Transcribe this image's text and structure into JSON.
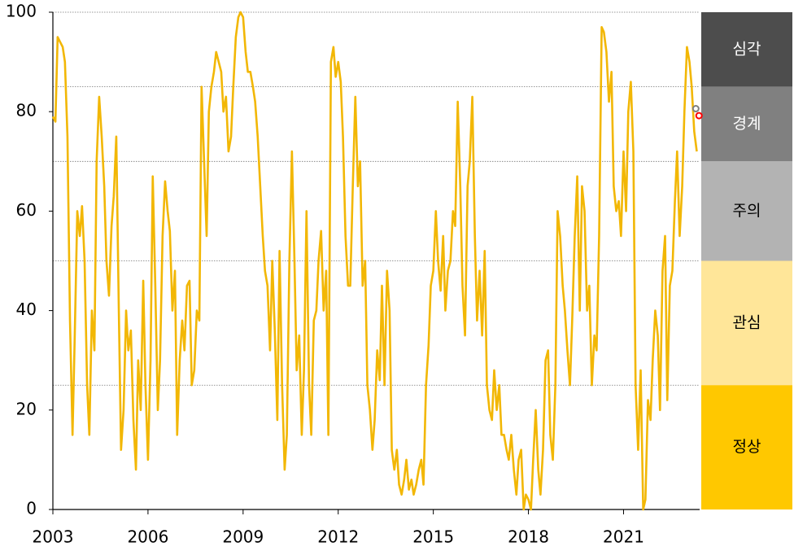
{
  "chart_data": {
    "type": "line",
    "color": "#f2b705",
    "xlim": [
      2003,
      2023.4
    ],
    "xticks": [
      2003,
      2006,
      2009,
      2012,
      2015,
      2018,
      2021
    ],
    "ylim": [
      0,
      100
    ],
    "yticks": [
      0,
      20,
      40,
      60,
      80,
      100
    ],
    "bands": [
      {
        "label": "심각",
        "from": 85,
        "to": 100,
        "color": "#4d4d4d",
        "text_color": "#ffffff"
      },
      {
        "label": "경계",
        "from": 70,
        "to": 85,
        "color": "#808080",
        "text_color": "#ffffff"
      },
      {
        "label": "주의",
        "from": 50,
        "to": 70,
        "color": "#b3b3b3",
        "text_color": "#000000"
      },
      {
        "label": "관심",
        "from": 25,
        "to": 50,
        "color": "#ffe699",
        "text_color": "#000000"
      },
      {
        "label": "정상",
        "from": 0,
        "to": 25,
        "color": "#ffc800",
        "text_color": "#000000"
      }
    ],
    "markers": [
      {
        "x": 2023.28,
        "y": 80.6,
        "color": "#7f7f7f"
      },
      {
        "x": 2023.38,
        "y": 79.2,
        "color": "#ff0000"
      }
    ],
    "x": [
      2003,
      2003.08,
      2003.15,
      2003.23,
      2003.31,
      2003.38,
      2003.46,
      2003.54,
      2003.62,
      2003.69,
      2003.77,
      2003.85,
      2003.92,
      2004,
      2004.08,
      2004.15,
      2004.23,
      2004.31,
      2004.38,
      2004.46,
      2004.54,
      2004.62,
      2004.69,
      2004.77,
      2004.85,
      2004.92,
      2005,
      2005.08,
      2005.15,
      2005.23,
      2005.31,
      2005.38,
      2005.46,
      2005.54,
      2005.62,
      2005.69,
      2005.77,
      2005.85,
      2005.92,
      2006,
      2006.08,
      2006.15,
      2006.23,
      2006.31,
      2006.38,
      2006.46,
      2006.54,
      2006.62,
      2006.69,
      2006.77,
      2006.85,
      2006.92,
      2007,
      2007.08,
      2007.15,
      2007.23,
      2007.31,
      2007.38,
      2007.46,
      2007.54,
      2007.62,
      2007.69,
      2007.77,
      2007.85,
      2007.92,
      2008,
      2008.08,
      2008.15,
      2008.23,
      2008.31,
      2008.38,
      2008.46,
      2008.54,
      2008.62,
      2008.69,
      2008.77,
      2008.85,
      2008.92,
      2009,
      2009.08,
      2009.15,
      2009.23,
      2009.31,
      2009.38,
      2009.46,
      2009.54,
      2009.62,
      2009.69,
      2009.77,
      2009.85,
      2009.92,
      2010,
      2010.08,
      2010.15,
      2010.23,
      2010.31,
      2010.38,
      2010.46,
      2010.54,
      2010.62,
      2010.69,
      2010.77,
      2010.85,
      2010.92,
      2011,
      2011.08,
      2011.15,
      2011.23,
      2011.31,
      2011.38,
      2011.46,
      2011.54,
      2011.62,
      2011.69,
      2011.77,
      2011.85,
      2011.92,
      2012,
      2012.08,
      2012.15,
      2012.23,
      2012.31,
      2012.38,
      2012.46,
      2012.54,
      2012.62,
      2012.69,
      2012.77,
      2012.85,
      2012.92,
      2013,
      2013.08,
      2013.15,
      2013.23,
      2013.31,
      2013.38,
      2013.46,
      2013.54,
      2013.62,
      2013.69,
      2013.77,
      2013.85,
      2013.92,
      2014,
      2014.08,
      2014.15,
      2014.23,
      2014.31,
      2014.38,
      2014.46,
      2014.54,
      2014.62,
      2014.69,
      2014.77,
      2014.85,
      2014.92,
      2015,
      2015.08,
      2015.15,
      2015.23,
      2015.31,
      2015.38,
      2015.46,
      2015.54,
      2015.62,
      2015.69,
      2015.77,
      2015.85,
      2015.92,
      2016,
      2016.08,
      2016.15,
      2016.23,
      2016.31,
      2016.38,
      2016.46,
      2016.54,
      2016.62,
      2016.69,
      2016.77,
      2016.85,
      2016.92,
      2017,
      2017.08,
      2017.15,
      2017.23,
      2017.31,
      2017.38,
      2017.46,
      2017.54,
      2017.62,
      2017.69,
      2017.77,
      2017.85,
      2017.92,
      2018,
      2018.08,
      2018.15,
      2018.23,
      2018.31,
      2018.38,
      2018.46,
      2018.54,
      2018.62,
      2018.69,
      2018.77,
      2018.85,
      2018.92,
      2019,
      2019.08,
      2019.15,
      2019.23,
      2019.31,
      2019.38,
      2019.46,
      2019.54,
      2019.62,
      2019.69,
      2019.77,
      2019.85,
      2019.92,
      2020,
      2020.08,
      2020.15,
      2020.23,
      2020.31,
      2020.38,
      2020.46,
      2020.54,
      2020.62,
      2020.69,
      2020.77,
      2020.85,
      2020.92,
      2021,
      2021.08,
      2021.15,
      2021.23,
      2021.31,
      2021.38,
      2021.46,
      2021.54,
      2021.62,
      2021.69,
      2021.77,
      2021.85,
      2021.92,
      2022,
      2022.08,
      2022.15,
      2022.23,
      2022.31,
      2022.38,
      2022.46,
      2022.54,
      2022.62,
      2022.69,
      2022.77,
      2022.85,
      2022.92,
      2023,
      2023.08,
      2023.15,
      2023.23,
      2023.31
    ],
    "values": [
      79,
      78,
      95,
      94,
      93,
      90,
      75,
      38,
      15,
      35,
      60,
      55,
      61,
      50,
      25,
      15,
      40,
      32,
      70,
      83,
      75,
      65,
      50,
      43,
      57,
      63,
      75,
      40,
      12,
      20,
      40,
      32,
      36,
      18,
      8,
      30,
      20,
      46,
      25,
      10,
      30,
      67,
      45,
      20,
      30,
      55,
      66,
      60,
      56,
      40,
      48,
      15,
      30,
      38,
      32,
      45,
      46,
      25,
      28,
      40,
      38,
      85,
      70,
      55,
      80,
      85,
      88,
      92,
      90,
      88,
      80,
      83,
      72,
      75,
      85,
      95,
      99,
      100,
      99,
      92,
      88,
      88,
      85,
      82,
      75,
      65,
      55,
      48,
      45,
      32,
      50,
      36,
      18,
      52,
      25,
      8,
      15,
      50,
      72,
      50,
      28,
      35,
      15,
      28,
      60,
      25,
      15,
      38,
      40,
      50,
      56,
      40,
      48,
      15,
      90,
      93,
      87,
      90,
      86,
      75,
      55,
      45,
      45,
      65,
      83,
      65,
      70,
      45,
      50,
      25,
      20,
      12,
      18,
      32,
      26,
      45,
      25,
      48,
      40,
      12,
      8,
      12,
      5,
      3,
      6,
      10,
      4,
      6,
      3,
      5,
      8,
      10,
      5,
      25,
      33,
      45,
      48,
      60,
      50,
      44,
      55,
      40,
      48,
      50,
      60,
      57,
      82,
      65,
      45,
      35,
      65,
      70,
      83,
      55,
      38,
      48,
      35,
      52,
      25,
      20,
      18,
      28,
      20,
      25,
      15,
      15,
      12,
      10,
      15,
      8,
      3,
      10,
      12,
      0,
      3,
      2,
      0,
      10,
      20,
      8,
      3,
      12,
      30,
      32,
      15,
      10,
      25,
      60,
      55,
      45,
      40,
      32,
      25,
      38,
      55,
      67,
      40,
      65,
      60,
      40,
      45,
      25,
      35,
      32,
      55,
      97,
      96,
      92,
      82,
      88,
      65,
      60,
      62,
      55,
      72,
      60,
      80,
      86,
      72,
      25,
      12,
      28,
      0,
      2,
      22,
      18,
      30,
      40,
      35,
      20,
      48,
      55,
      22,
      45,
      48,
      62,
      72,
      55,
      65,
      80,
      93,
      90,
      85,
      76,
      72
    ]
  }
}
